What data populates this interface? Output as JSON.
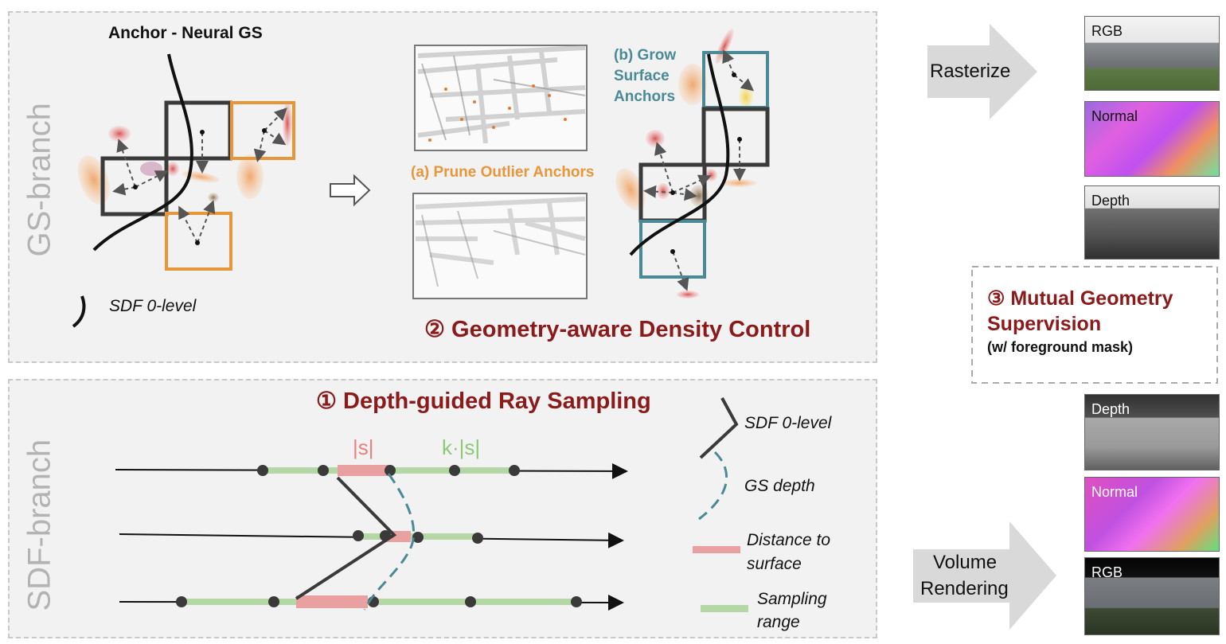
{
  "gs_branch": {
    "label": "GS-branch",
    "anchor_title": "Anchor - Neural GS",
    "sdf_legend": "SDF 0-level",
    "prune_label": "(a) Prune Outlier Anchors",
    "grow_label_1": "(b) Grow",
    "grow_label_2": "Surface",
    "grow_label_3": "Anchors",
    "density_title": "② Geometry-aware Density Control"
  },
  "sdf_branch": {
    "label": "SDF-branch",
    "sampling_title": "① Depth-guided Ray Sampling",
    "s_label": "|s|",
    "ks_label": "k·|s|",
    "legend": {
      "sdf": "SDF 0-level",
      "gs_depth": "GS depth",
      "distance_1": "Distance to",
      "distance_2": "surface",
      "sampling_1": "Sampling",
      "sampling_2": "range"
    }
  },
  "right": {
    "rasterize": "Rasterize",
    "volume_1": "Volume",
    "volume_2": "Rendering",
    "top_thumbs": [
      "RGB",
      "Normal",
      "Depth"
    ],
    "bottom_thumbs": [
      "Depth",
      "Normal",
      "RGB"
    ],
    "mutual_1": "③ Mutual Geometry",
    "mutual_2": "Supervision",
    "mutual_3": "(w/ foreground mask)"
  },
  "colors": {
    "orange": "#e8963a",
    "teal": "#4a8a96",
    "dark_red": "#8b1a1a",
    "pink_range": "#e8a0a0",
    "green_range": "#b5d6a5"
  }
}
